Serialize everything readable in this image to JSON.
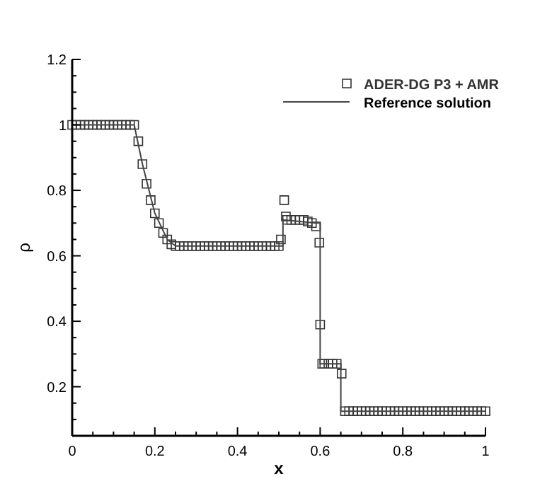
{
  "chart_data": {
    "type": "line",
    "xlabel": "x",
    "ylabel": "ρ",
    "xlim": [
      0,
      1
    ],
    "ylim": [
      0.05,
      1.2
    ],
    "xticks": [
      0,
      {
        "value": 0.05,
        "label": null
      },
      {
        "value": 0.1,
        "label": null
      },
      {
        "value": 0.15,
        "label": null
      },
      0.2,
      {
        "value": 0.25,
        "label": null
      },
      {
        "value": 0.3,
        "label": null
      },
      {
        "value": 0.35,
        "label": null
      },
      0.4,
      {
        "value": 0.45,
        "label": null
      },
      {
        "value": 0.5,
        "label": null
      },
      {
        "value": 0.55,
        "label": null
      },
      0.6,
      {
        "value": 0.65,
        "label": null
      },
      {
        "value": 0.7,
        "label": null
      },
      {
        "value": 0.75,
        "label": null
      },
      0.8,
      {
        "value": 0.85,
        "label": null
      },
      {
        "value": 0.9,
        "label": null
      },
      {
        "value": 0.95,
        "label": null
      },
      1
    ],
    "yticks": [
      {
        "value": 0.05,
        "label": null
      },
      {
        "value": 0.1,
        "label": null
      },
      {
        "value": 0.15,
        "label": null
      },
      0.2,
      {
        "value": 0.25,
        "label": null
      },
      {
        "value": 0.3,
        "label": null
      },
      {
        "value": 0.35,
        "label": null
      },
      0.4,
      {
        "value": 0.45,
        "label": null
      },
      {
        "value": 0.5,
        "label": null
      },
      {
        "value": 0.55,
        "label": null
      },
      0.6,
      {
        "value": 0.65,
        "label": null
      },
      {
        "value": 0.7,
        "label": null
      },
      {
        "value": 0.75,
        "label": null
      },
      0.8,
      {
        "value": 0.85,
        "label": null
      },
      {
        "value": 0.9,
        "label": null
      },
      {
        "value": 0.95,
        "label": null
      },
      1,
      {
        "value": 1.05,
        "label": null
      },
      {
        "value": 1.1,
        "label": null
      },
      {
        "value": 1.15,
        "label": null
      },
      1.2
    ],
    "grid": false,
    "legend": "top right",
    "series": [
      {
        "name": "ADER-DG P3 + AMR",
        "type": "scatter",
        "marker": "square",
        "color": "#333333",
        "x": [
          0,
          0.01,
          0.02,
          0.03,
          0.04,
          0.05,
          0.06,
          0.07,
          0.08,
          0.09,
          0.1,
          0.11,
          0.12,
          0.13,
          0.14,
          0.15,
          0.16,
          0.17,
          0.18,
          0.19,
          0.2,
          0.21,
          0.22,
          0.23,
          0.24,
          0.25,
          0.26,
          0.27,
          0.28,
          0.29,
          0.3,
          0.31,
          0.32,
          0.33,
          0.34,
          0.35,
          0.36,
          0.37,
          0.38,
          0.39,
          0.4,
          0.41,
          0.42,
          0.43,
          0.44,
          0.45,
          0.46,
          0.47,
          0.48,
          0.49,
          0.5,
          0.505,
          0.513,
          0.517,
          0.52,
          0.53,
          0.54,
          0.55,
          0.56,
          0.57,
          0.58,
          0.59,
          0.598,
          0.6,
          0.605,
          0.61,
          0.62,
          0.63,
          0.64,
          0.652,
          0.66,
          0.67,
          0.68,
          0.69,
          0.7,
          0.71,
          0.72,
          0.73,
          0.74,
          0.75,
          0.76,
          0.77,
          0.78,
          0.79,
          0.8,
          0.81,
          0.82,
          0.83,
          0.84,
          0.85,
          0.86,
          0.87,
          0.88,
          0.89,
          0.9,
          0.91,
          0.92,
          0.93,
          0.94,
          0.95,
          0.96,
          0.97,
          0.98,
          0.99,
          1
        ],
        "values": [
          1,
          1,
          1,
          1,
          1,
          1,
          1,
          1,
          1,
          1,
          1,
          1,
          1,
          1,
          1,
          1,
          0.95,
          0.88,
          0.82,
          0.77,
          0.73,
          0.7,
          0.67,
          0.65,
          0.635,
          0.63,
          0.63,
          0.63,
          0.63,
          0.63,
          0.63,
          0.63,
          0.63,
          0.63,
          0.63,
          0.63,
          0.63,
          0.63,
          0.63,
          0.63,
          0.63,
          0.63,
          0.63,
          0.63,
          0.63,
          0.63,
          0.63,
          0.63,
          0.63,
          0.63,
          0.63,
          0.65,
          0.77,
          0.72,
          0.71,
          0.71,
          0.71,
          0.71,
          0.71,
          0.705,
          0.7,
          0.69,
          0.64,
          0.39,
          0.27,
          0.27,
          0.27,
          0.27,
          0.27,
          0.24,
          0.125,
          0.125,
          0.125,
          0.125,
          0.125,
          0.125,
          0.125,
          0.125,
          0.125,
          0.125,
          0.125,
          0.125,
          0.125,
          0.125,
          0.125,
          0.125,
          0.125,
          0.125,
          0.125,
          0.125,
          0.125,
          0.125,
          0.125,
          0.125,
          0.125,
          0.125,
          0.125,
          0.125,
          0.125,
          0.125,
          0.125,
          0.125,
          0.125,
          0.125,
          0.125
        ]
      },
      {
        "name": "Reference solution",
        "line_style": "solid",
        "color": "#444444",
        "x": [
          0,
          0.15,
          0.17,
          0.2,
          0.23,
          0.25,
          0.51,
          0.51,
          0.59,
          0.6,
          0.6,
          0.65,
          0.65,
          1
        ],
        "values": [
          1,
          1,
          0.88,
          0.73,
          0.65,
          0.63,
          0.63,
          0.71,
          0.7,
          0.7,
          0.27,
          0.27,
          0.125,
          0.125
        ]
      }
    ]
  }
}
